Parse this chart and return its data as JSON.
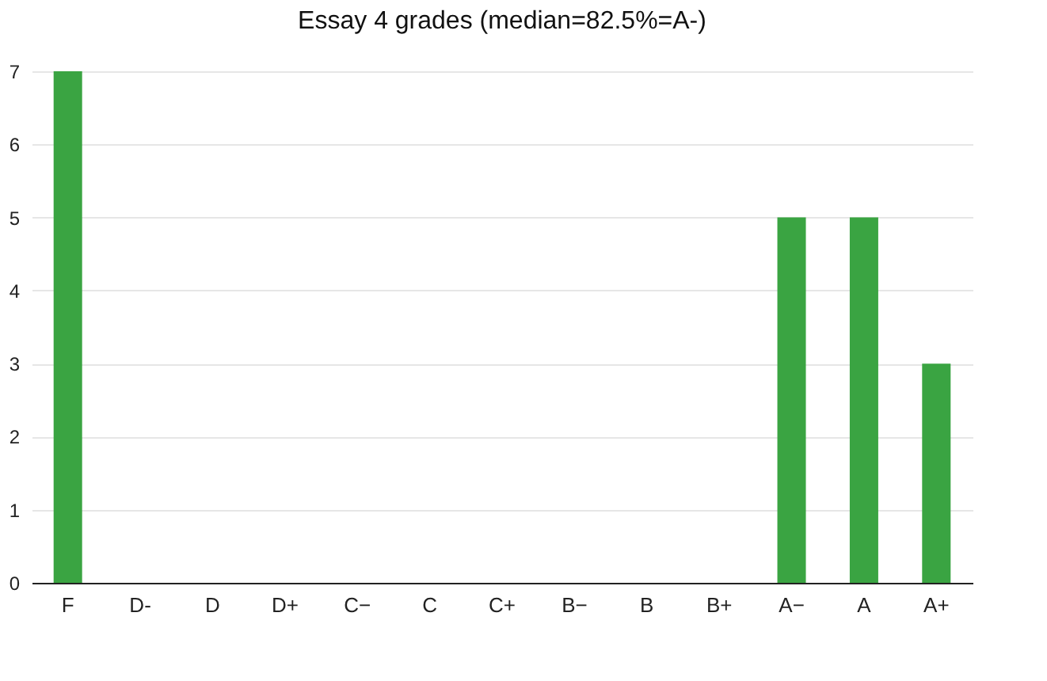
{
  "chart_data": {
    "type": "bar",
    "title": "Essay 4 grades (median=82.5%=A-)",
    "categories": [
      "F",
      "D-",
      "D",
      "D+",
      "C−",
      "C",
      "C+",
      "B−",
      "B",
      "B+",
      "A−",
      "A",
      "A+"
    ],
    "values": [
      7,
      0,
      0,
      0,
      0,
      0,
      0,
      0,
      0,
      0,
      5,
      5,
      3
    ],
    "color": "#3aa442",
    "ylim": [
      0,
      7
    ],
    "yticks": [
      0,
      1,
      2,
      3,
      4,
      5,
      6,
      7
    ],
    "grid": "y"
  }
}
